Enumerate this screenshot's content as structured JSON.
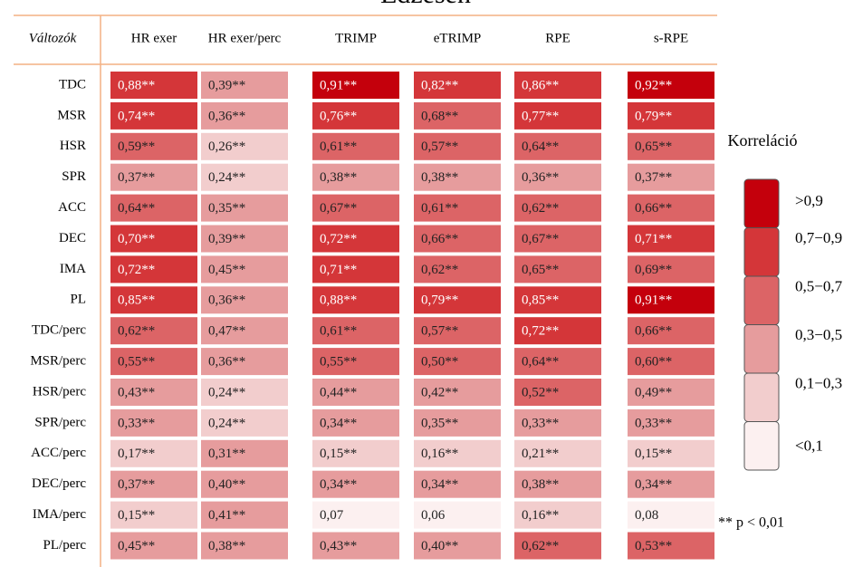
{
  "title": "Edzésen",
  "table": {
    "header": [
      "Változók",
      "HR exer",
      "HR exer/perc",
      "TRIMP",
      "eTRIMP",
      "RPE",
      "s-RPE"
    ],
    "rows": [
      {
        "label": "TDC",
        "cells": [
          "0,88**",
          "0,39**",
          "0,91**",
          "0,82**",
          "0,86**",
          "0,92**"
        ]
      },
      {
        "label": "MSR",
        "cells": [
          "0,74**",
          "0,36**",
          "0,76**",
          "0,68**",
          "0,77**",
          "0,79**"
        ]
      },
      {
        "label": "HSR",
        "cells": [
          "0,59**",
          "0,26**",
          "0,61**",
          "0,57**",
          "0,64**",
          "0,65**"
        ]
      },
      {
        "label": "SPR",
        "cells": [
          "0,37**",
          "0,24**",
          "0,38**",
          "0,38**",
          "0,36**",
          "0,37**"
        ]
      },
      {
        "label": "ACC",
        "cells": [
          "0,64**",
          "0,35**",
          "0,67**",
          "0,61**",
          "0,62**",
          "0,66**"
        ]
      },
      {
        "label": "DEC",
        "cells": [
          "0,70**",
          "0,39**",
          "0,72**",
          "0,66**",
          "0,67**",
          "0,71**"
        ]
      },
      {
        "label": "IMA",
        "cells": [
          "0,72**",
          "0,45**",
          "0,71**",
          "0,62**",
          "0,65**",
          "0,69**"
        ]
      },
      {
        "label": "PL",
        "cells": [
          "0,85**",
          "0,36**",
          "0,88**",
          "0,79**",
          "0,85**",
          "0,91**"
        ]
      },
      {
        "label": "TDC/perc",
        "cells": [
          "0,62**",
          "0,47**",
          "0,61**",
          "0,57**",
          "0,72**",
          "0,66**"
        ]
      },
      {
        "label": "MSR/perc",
        "cells": [
          "0,55**",
          "0,36**",
          "0,55**",
          "0,50**",
          "0,64**",
          "0,60**"
        ]
      },
      {
        "label": "HSR/perc",
        "cells": [
          "0,43**",
          "0,24**",
          "0,44**",
          "0,42**",
          "0,52**",
          "0,49**"
        ]
      },
      {
        "label": "SPR/perc",
        "cells": [
          "0,33**",
          "0,24**",
          "0,34**",
          "0,35**",
          "0,33**",
          "0,33**"
        ]
      },
      {
        "label": "ACC/perc",
        "cells": [
          "0,17**",
          "0,31**",
          "0,15**",
          "0,16**",
          "0,21**",
          "0,15**"
        ]
      },
      {
        "label": "DEC/perc",
        "cells": [
          "0,37**",
          "0,40**",
          "0,34**",
          "0,34**",
          "0,38**",
          "0,34**"
        ]
      },
      {
        "label": "IMA/perc",
        "cells": [
          "0,15**",
          "0,41**",
          "0,07",
          "0,06",
          "0,16**",
          "0,08"
        ]
      },
      {
        "label": "PL/perc",
        "cells": [
          "0,45**",
          "0,38**",
          "0,43**",
          "0,40**",
          "0,62**",
          "0,53**"
        ]
      }
    ]
  },
  "legend": {
    "title": "Korreláció",
    "items": [
      {
        "label": ">0,9",
        "color": "#c4000c"
      },
      {
        "label": "0,7−0,9",
        "color": "#d43639"
      },
      {
        "label": "0,5−0,7",
        "color": "#dc6466"
      },
      {
        "label": "0,3−0,5",
        "color": "#e69c9d"
      },
      {
        "label": "0,1−0,3",
        "color": "#f2cdcd"
      },
      {
        "label": "<0,1",
        "color": "#fcf0f0"
      }
    ]
  },
  "footnote": "** p < 0,01"
}
